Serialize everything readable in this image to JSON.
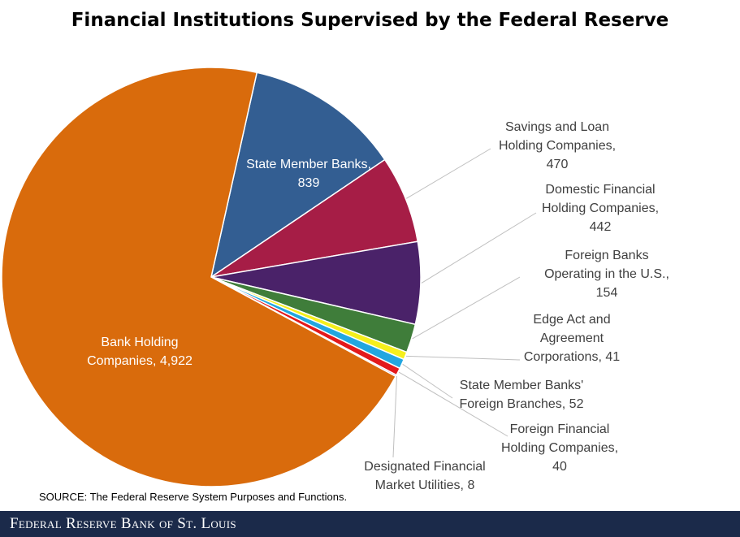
{
  "chart_data": {
    "type": "pie",
    "title": "Financial Institutions Supervised by the Federal Reserve",
    "start_angle_deg": -77.4,
    "slices": [
      {
        "label_lines": [
          "State Member Banks,",
          "839"
        ],
        "value": 839,
        "color": "#335e92"
      },
      {
        "label_lines": [
          "Savings and Loan",
          "Holding Companies,",
          "470"
        ],
        "value": 470,
        "color": "#a61d46"
      },
      {
        "label_lines": [
          "Domestic Financial",
          "Holding Companies,",
          "442"
        ],
        "value": 442,
        "color": "#4a2269"
      },
      {
        "label_lines": [
          "Foreign Banks",
          "Operating in the U.S.,",
          "154"
        ],
        "value": 154,
        "color": "#3f7d3a"
      },
      {
        "label_lines": [
          "Edge Act and",
          "Agreement",
          "Corporations, 41"
        ],
        "value": 41,
        "color": "#f5ef1c"
      },
      {
        "label_lines": [
          "State Member Banks'",
          "Foreign Branches, 52"
        ],
        "value": 52,
        "color": "#22a6e0"
      },
      {
        "label_lines": [
          "Foreign Financial",
          "Holding Companies,",
          "40"
        ],
        "value": 40,
        "color": "#e3191c"
      },
      {
        "label_lines": [
          "Designated Financial",
          "Market Utilities, 8"
        ],
        "value": 8,
        "color": "#7a4fa0"
      },
      {
        "label_lines": [
          "Bank Holding",
          "Companies, 4,922"
        ],
        "value": 4922,
        "color": "#d96b0c"
      }
    ]
  },
  "source_note": "SOURCE: The Federal Reserve System Purposes and Functions.",
  "footer": {
    "brand": "Federal Reserve Bank of St. Louis"
  }
}
